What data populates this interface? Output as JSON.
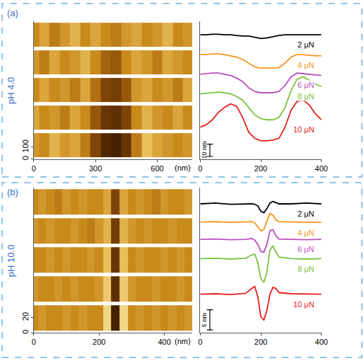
{
  "chart_data": [
    {
      "type": "heatmap",
      "title": "(a)",
      "subtitle": "pH 4.0",
      "x_label": "(nm)",
      "x": [
        0,
        50,
        100,
        150,
        200,
        250,
        300,
        350,
        400,
        450,
        500,
        550,
        600,
        650,
        700,
        750
      ],
      "y": [
        115,
        345,
        575,
        805,
        1035
      ],
      "z": [
        [
          13,
          12,
          15,
          13,
          14,
          11,
          6,
          2,
          1,
          4,
          11,
          16,
          14,
          13,
          12,
          13
        ],
        [
          14,
          12,
          13,
          11,
          14,
          12,
          8,
          4,
          3,
          6,
          12,
          15,
          13,
          12,
          14,
          12
        ],
        [
          12,
          14,
          12,
          13,
          11,
          14,
          10,
          6,
          5,
          8,
          13,
          14,
          12,
          13,
          11,
          14
        ],
        [
          13,
          11,
          14,
          12,
          13,
          15,
          12,
          9,
          8,
          12,
          14,
          13,
          11,
          14,
          13,
          12
        ],
        [
          12,
          14,
          11,
          13,
          15,
          12,
          14,
          12,
          11,
          13,
          14,
          12,
          13,
          15,
          12,
          13
        ]
      ],
      "zlim": [
        0,
        20
      ],
      "xlim": [
        0,
        770
      ],
      "xticks": [
        0,
        300,
        600
      ],
      "ylim": [
        0,
        1150
      ],
      "yticks": [
        0,
        100
      ]
    },
    {
      "type": "line",
      "x": [
        0,
        20,
        40,
        60,
        80,
        100,
        120,
        140,
        160,
        180,
        200,
        220,
        240,
        260,
        280,
        300,
        320,
        340,
        360,
        380,
        400
      ],
      "series": [
        {
          "name": "2 μN",
          "color": "#000000",
          "values": [
            89,
            89,
            89.5,
            89.5,
            89,
            89,
            88.5,
            88,
            88,
            87,
            86,
            86.5,
            87.5,
            88.5,
            89,
            89,
            89,
            89,
            89,
            89,
            89
          ]
        },
        {
          "name": "4 μN",
          "color": "#f7941d",
          "values": [
            73,
            73,
            73.5,
            73.5,
            73,
            72,
            71,
            69,
            66,
            63,
            62,
            62,
            62,
            62.5,
            66,
            71,
            73,
            73,
            72.5,
            72,
            72
          ]
        },
        {
          "name": "6 μN",
          "color": "#b94fbf",
          "values": [
            57,
            57.5,
            58,
            58,
            57,
            56,
            54,
            51,
            46,
            43,
            42,
            42,
            42,
            43,
            48,
            55,
            58,
            57.5,
            57,
            56.5,
            56
          ]
        },
        {
          "name": "8 μN",
          "color": "#7cc242",
          "values": [
            41,
            41.5,
            42,
            42.5,
            42,
            41,
            39,
            36,
            30,
            24,
            21,
            20,
            20,
            22,
            30,
            44,
            53,
            55,
            52,
            49,
            47
          ]
        },
        {
          "name": "10 μN",
          "color": "#e3201b",
          "values": [
            14,
            16,
            20,
            26,
            30,
            33,
            31,
            22,
            10,
            5,
            3,
            3,
            3.5,
            5,
            14,
            28,
            35,
            36,
            32,
            25,
            20
          ]
        }
      ],
      "xlim": [
        0,
        400
      ],
      "xticks": [
        0,
        200,
        400
      ],
      "ylim": [
        -12,
        100
      ],
      "tick_labels": "x",
      "scale_bar": {
        "value": 10,
        "label": "10 nm"
      }
    },
    {
      "type": "heatmap",
      "title": "(b)",
      "subtitle": "pH 10.0",
      "x_label": "(nm)",
      "x": [
        0,
        25,
        50,
        75,
        100,
        125,
        150,
        175,
        200,
        225,
        250,
        275,
        300,
        325,
        350,
        375,
        400,
        425,
        450,
        475
      ],
      "y": [
        19,
        57,
        95,
        133,
        171
      ],
      "z": [
        [
          12,
          13,
          12,
          12,
          13,
          12,
          13,
          12,
          12,
          18,
          1,
          18,
          12,
          13,
          12,
          13,
          12,
          13,
          12,
          13
        ],
        [
          13,
          12,
          12,
          13,
          12,
          13,
          12,
          12,
          13,
          17,
          3,
          17,
          13,
          12,
          12,
          13,
          12,
          12,
          13,
          12
        ],
        [
          12,
          12,
          13,
          12,
          13,
          12,
          12,
          13,
          12,
          16,
          4,
          16,
          12,
          13,
          12,
          12,
          13,
          12,
          13,
          12
        ],
        [
          13,
          12,
          13,
          12,
          12,
          13,
          12,
          11,
          13,
          15,
          5,
          15,
          13,
          12,
          13,
          12,
          12,
          13,
          12,
          12
        ],
        [
          12,
          13,
          12,
          11,
          13,
          12,
          13,
          12,
          12,
          14,
          6,
          14,
          12,
          13,
          12,
          11,
          13,
          12,
          12,
          13
        ]
      ],
      "zlim": [
        0,
        20
      ],
      "xlim": [
        0,
        485
      ],
      "xticks": [
        0,
        200,
        400
      ],
      "ylim": [
        0,
        190
      ],
      "yticks": [
        0,
        20
      ]
    },
    {
      "type": "line",
      "x": [
        0,
        50,
        100,
        150,
        170,
        180,
        190,
        200,
        210,
        220,
        230,
        240,
        250,
        260,
        300,
        350,
        400
      ],
      "series": [
        {
          "name": "2 μN",
          "color": "#000000",
          "values": [
            32,
            32.2,
            31.9,
            32,
            32,
            31.9,
            31.5,
            30.2,
            29.8,
            30.8,
            32.2,
            32.6,
            32.3,
            32,
            32,
            32.2,
            32
          ]
        },
        {
          "name": "4 μN",
          "color": "#f7941d",
          "values": [
            27.5,
            27.6,
            27.4,
            27.5,
            27.6,
            27.3,
            26.4,
            25.3,
            25.6,
            27.5,
            29.6,
            29.2,
            28,
            27.6,
            27.5,
            27.4,
            27.4
          ]
        },
        {
          "name": "6 μN",
          "color": "#b94fbf",
          "values": [
            23.2,
            23.3,
            23.1,
            23.2,
            23.4,
            23,
            22,
            20.2,
            20,
            22,
            25.3,
            25.6,
            24,
            23.3,
            23.2,
            23.1,
            23.2
          ]
        },
        {
          "name": "8 μN",
          "color": "#7cc242",
          "values": [
            18.4,
            18.5,
            18.3,
            18.5,
            19.3,
            19.5,
            17.5,
            13.5,
            12.5,
            15,
            20.5,
            21.6,
            20,
            18.8,
            18.4,
            18.3,
            18.4
          ]
        },
        {
          "name": "10 μN",
          "color": "#e3201b",
          "values": [
            9.6,
            9.7,
            9.5,
            9.8,
            11,
            11.5,
            9,
            4,
            3.2,
            5.5,
            9.5,
            11.3,
            11,
            10,
            9.7,
            9.6,
            9.6
          ]
        }
      ],
      "xlim": [
        0,
        400
      ],
      "xticks": [
        0,
        200,
        400
      ],
      "ylim": [
        0,
        36
      ],
      "tick_labels": "x",
      "scale_bar": {
        "value": 5,
        "label": "5 nm"
      }
    }
  ]
}
